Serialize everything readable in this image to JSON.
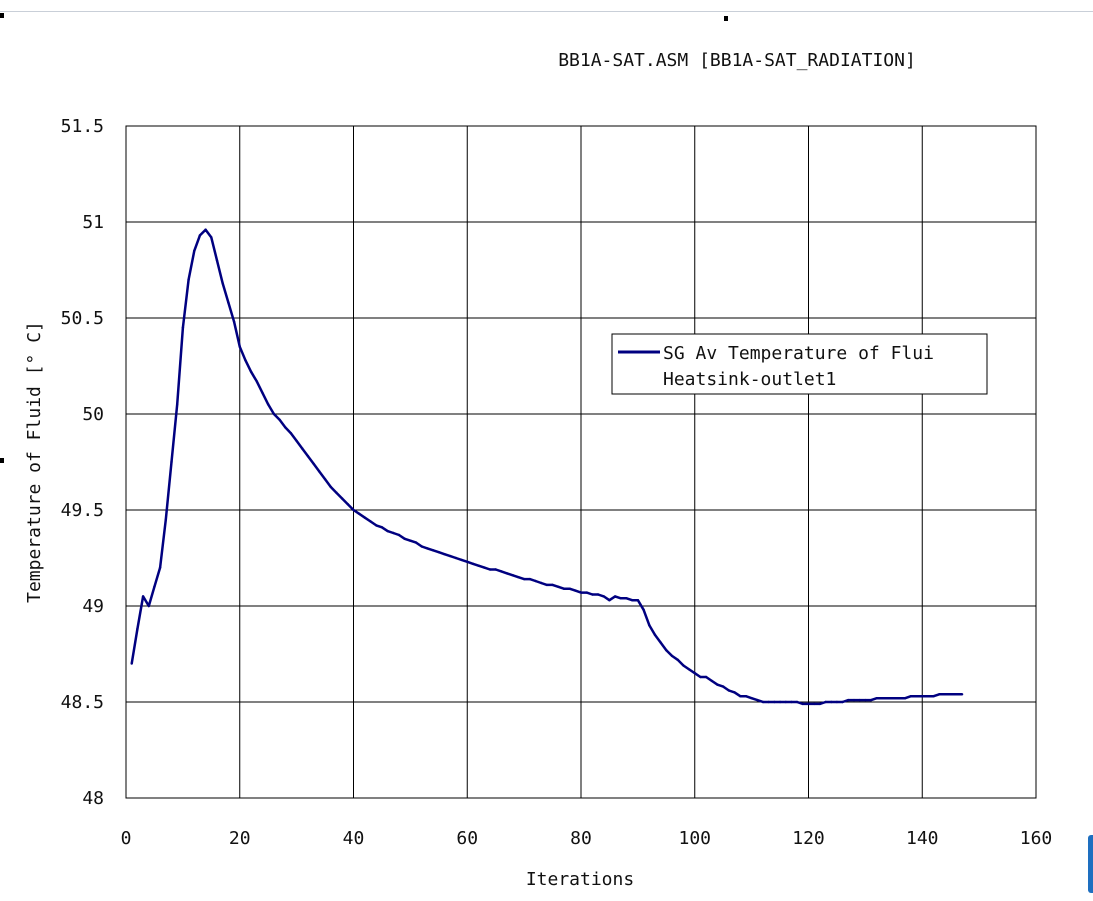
{
  "chart_data": {
    "type": "line",
    "title": "BB1A-SAT.ASM [BB1A-SAT_RADIATION]",
    "xlabel": "Iterations",
    "ylabel": "Temperature of Fluid  [° C]",
    "xlim": [
      0,
      160
    ],
    "ylim": [
      48,
      51.5
    ],
    "xticks": [
      "0",
      "20",
      "40",
      "60",
      "80",
      "100",
      "120",
      "140",
      "160"
    ],
    "yticks": [
      "48",
      "48.5",
      "49",
      "49.5",
      "50",
      "50.5",
      "51",
      "51.5"
    ],
    "grid": true,
    "legend": {
      "position": "right",
      "entry_line1": "SG Av Temperature of Flui",
      "entry_line2": "Heatsink-outlet1"
    },
    "series": [
      {
        "name": "SG Av Temperature of Flui Heatsink-outlet1",
        "color": "#000080",
        "x": [
          1,
          2,
          3,
          4,
          5,
          6,
          7,
          8,
          9,
          10,
          11,
          12,
          13,
          14,
          15,
          16,
          17,
          18,
          19,
          20,
          21,
          22,
          23,
          24,
          25,
          26,
          27,
          28,
          29,
          30,
          31,
          32,
          33,
          34,
          35,
          36,
          37,
          38,
          39,
          40,
          41,
          42,
          43,
          44,
          45,
          46,
          47,
          48,
          49,
          50,
          51,
          52,
          53,
          54,
          55,
          56,
          57,
          58,
          59,
          60,
          61,
          62,
          63,
          64,
          65,
          66,
          67,
          68,
          69,
          70,
          71,
          72,
          73,
          74,
          75,
          76,
          77,
          78,
          79,
          80,
          81,
          82,
          83,
          84,
          85,
          86,
          87,
          88,
          89,
          90,
          91,
          92,
          93,
          94,
          95,
          96,
          97,
          98,
          99,
          100,
          101,
          102,
          103,
          104,
          105,
          106,
          107,
          108,
          109,
          110,
          111,
          112,
          113,
          114,
          115,
          116,
          117,
          118,
          119,
          120,
          121,
          122,
          123,
          124,
          125,
          126,
          127,
          128,
          129,
          130,
          131,
          132,
          133,
          134,
          135,
          136,
          137,
          138,
          139,
          140,
          141,
          142,
          143,
          144,
          145,
          146,
          147
        ],
        "y": [
          48.7,
          48.88,
          49.05,
          49.0,
          49.1,
          49.2,
          49.45,
          49.75,
          50.05,
          50.45,
          50.7,
          50.85,
          50.93,
          50.96,
          50.92,
          50.8,
          50.68,
          50.58,
          50.48,
          50.35,
          50.28,
          50.22,
          50.17,
          50.11,
          50.05,
          50.0,
          49.97,
          49.93,
          49.9,
          49.86,
          49.82,
          49.78,
          49.74,
          49.7,
          49.66,
          49.62,
          49.59,
          49.56,
          49.53,
          49.5,
          49.48,
          49.46,
          49.44,
          49.42,
          49.41,
          49.39,
          49.38,
          49.37,
          49.35,
          49.34,
          49.33,
          49.31,
          49.3,
          49.29,
          49.28,
          49.27,
          49.26,
          49.25,
          49.24,
          49.23,
          49.22,
          49.21,
          49.2,
          49.19,
          49.19,
          49.18,
          49.17,
          49.16,
          49.15,
          49.14,
          49.14,
          49.13,
          49.12,
          49.11,
          49.11,
          49.1,
          49.09,
          49.09,
          49.08,
          49.07,
          49.07,
          49.06,
          49.06,
          49.05,
          49.03,
          49.05,
          49.04,
          49.04,
          49.03,
          49.03,
          48.98,
          48.9,
          48.85,
          48.81,
          48.77,
          48.74,
          48.72,
          48.69,
          48.67,
          48.65,
          48.63,
          48.63,
          48.61,
          48.59,
          48.58,
          48.56,
          48.55,
          48.53,
          48.53,
          48.52,
          48.51,
          48.5,
          48.5,
          48.5,
          48.5,
          48.5,
          48.5,
          48.5,
          48.49,
          48.49,
          48.49,
          48.49,
          48.5,
          48.5,
          48.5,
          48.5,
          48.51,
          48.51,
          48.51,
          48.51,
          48.51,
          48.52,
          48.52,
          48.52,
          48.52,
          48.52,
          48.52,
          48.53,
          48.53,
          48.53,
          48.53,
          48.53,
          48.54,
          48.54,
          48.54,
          48.54,
          48.54
        ]
      }
    ]
  }
}
